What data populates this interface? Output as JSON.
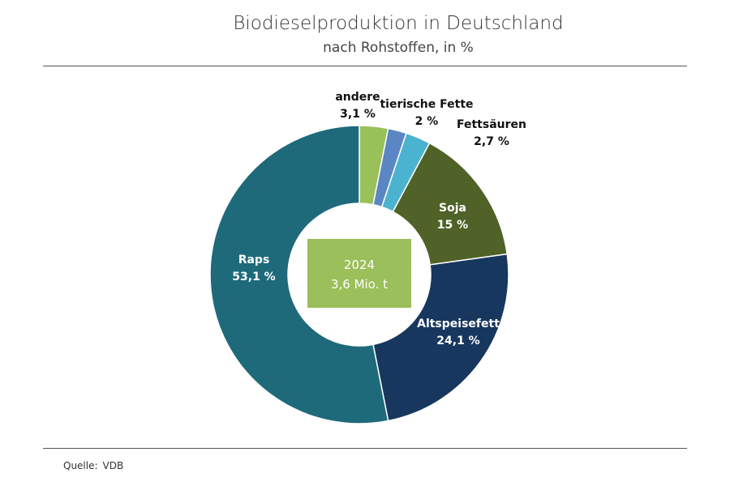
{
  "chart_data": {
    "type": "pie",
    "donut": true,
    "title": "Biodieselproduktion in Deutschland",
    "subtitle": "nach Rohstoffen, in %",
    "center_label": {
      "year": "2024",
      "total": "3,6 Mio. t",
      "color": "#9bbf5a"
    },
    "slices": [
      {
        "name": "andere",
        "value": 3.1,
        "label": "3,1 %",
        "color": "#98c15a"
      },
      {
        "name": "tierische Fette",
        "value": 2.0,
        "label": "2 %",
        "color": "#5b86c4"
      },
      {
        "name": "Fettsäuren",
        "value": 2.7,
        "label": "2,7 %",
        "color": "#4bb3cf"
      },
      {
        "name": "Soja",
        "value": 15.0,
        "label": "15 %",
        "color": "#4f6228"
      },
      {
        "name": "Altspeisefett",
        "value": 24.1,
        "label": "24,1 %",
        "color": "#17375e"
      },
      {
        "name": "Raps",
        "value": 53.1,
        "label": "53,1 %",
        "color": "#1f6a7a"
      }
    ]
  },
  "source": {
    "label": "Quelle:",
    "value": "VDB"
  }
}
